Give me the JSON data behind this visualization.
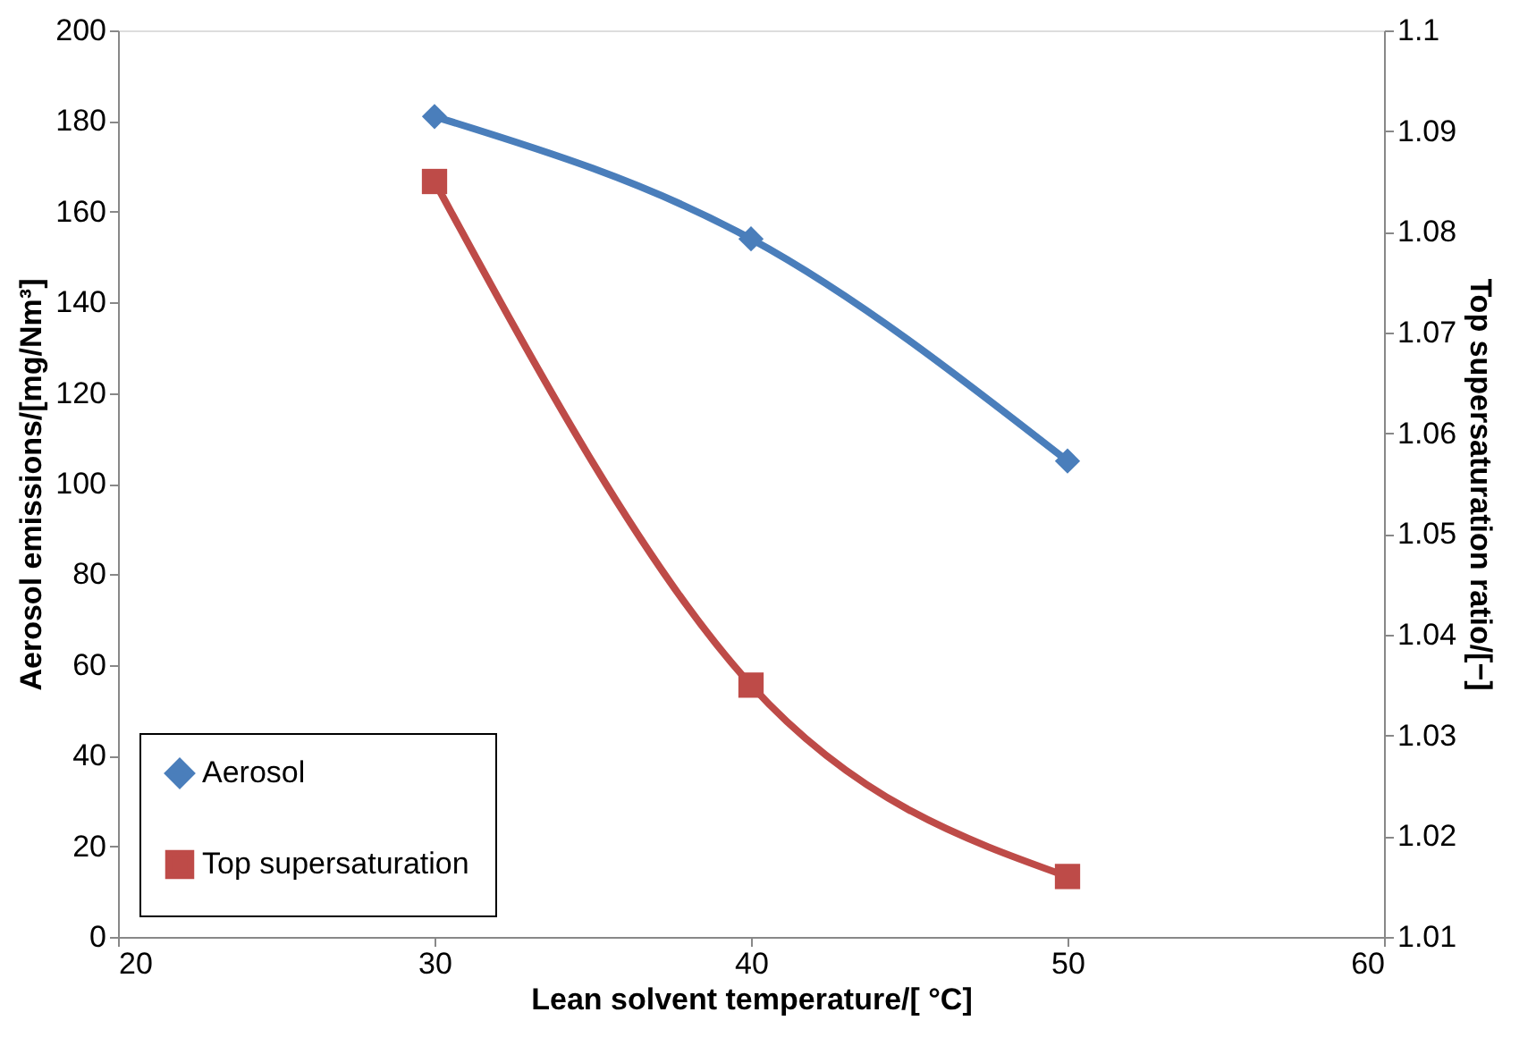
{
  "chart_data": {
    "type": "line",
    "x": [
      30,
      40,
      50
    ],
    "xlabel": "Lean solvent temperature/[ °C]",
    "ylabel": "Aerosol emissions/[mg/Nm³]",
    "y2label": "Top supersaturation ratio/[−]",
    "series": [
      {
        "name": "Aerosol",
        "color": "#4a7ebb",
        "marker": "diamond",
        "values": [
          181,
          154,
          105
        ]
      },
      {
        "name": "Top supersaturation",
        "color": "#be4b48",
        "marker": "square",
        "axis": "y2",
        "values": [
          1.085,
          1.035,
          1.016
        ]
      }
    ],
    "xlim": [
      20,
      60
    ],
    "xticks": [
      20,
      30,
      40,
      50,
      60
    ],
    "ylim": [
      0,
      200
    ],
    "yticks": [
      0,
      20,
      40,
      60,
      80,
      100,
      120,
      140,
      160,
      180,
      200
    ],
    "y2lim": [
      1.01,
      1.1
    ],
    "y2ticks": [
      1.01,
      1.02,
      1.03,
      1.04,
      1.05,
      1.06,
      1.07,
      1.08,
      1.09,
      1.1
    ],
    "grid": false,
    "legend": "bottom left",
    "line_style": "solid"
  }
}
